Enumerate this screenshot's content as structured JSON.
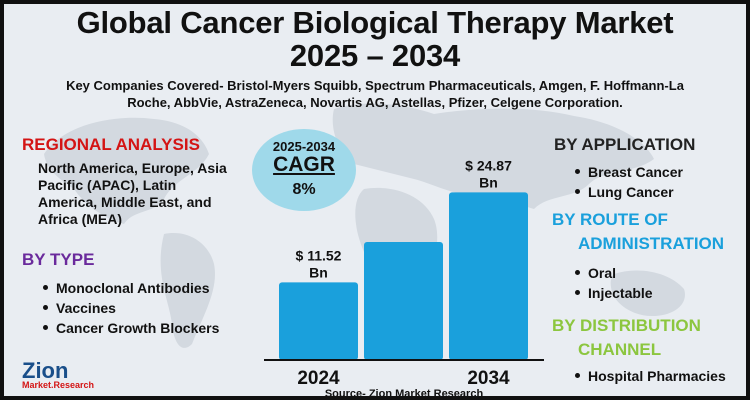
{
  "title_line1": "Global Cancer Biological Therapy Market",
  "title_line2": "2025 – 2034",
  "companies": "Key Companies Covered- Bristol-Myers Squibb, Spectrum Pharmaceuticals, Amgen, F. Hoffmann-La Roche, AbbVie, AstraZeneca, Novartis AG, Astellas, Pfizer, Celgene Corporation.",
  "regional": {
    "heading": "REGIONAL ANALYSIS",
    "text": "North America, Europe, Asia Pacific (APAC), Latin America, Middle East, and Africa (MEA)"
  },
  "by_type": {
    "heading": "BY TYPE",
    "items": [
      "Monoclonal Antibodies",
      "Vaccines",
      "Cancer Growth Blockers"
    ]
  },
  "cagr": {
    "period": "2025-2034",
    "label": "CAGR",
    "value": "8%"
  },
  "by_application": {
    "heading": "BY APPLICATION",
    "items": [
      "Breast Cancer",
      "Lung Cancer"
    ]
  },
  "by_route": {
    "heading_line1": "BY ROUTE OF",
    "heading_line2": "ADMINISTRATION",
    "items": [
      "Oral",
      "Injectable"
    ]
  },
  "by_distribution": {
    "heading_line1": "BY DISTRIBUTION",
    "heading_line2": "CHANNEL",
    "items": [
      "Hospital Pharmacies"
    ]
  },
  "source": "Source- Zion Market Research",
  "logo": {
    "word": "Zion",
    "sub": "Market.Research"
  },
  "colors": {
    "bar": "#1aa0dc",
    "cagr_circle": "#9fd9ea",
    "red_heading": "#d41414",
    "purple_heading": "#6a2a9c",
    "blue_heading": "#1aa0dc",
    "green_heading": "#8cc63f"
  },
  "chart_data": {
    "type": "bar",
    "categories": [
      "2024",
      "",
      "2034"
    ],
    "values": [
      11.52,
      17.5,
      24.87
    ],
    "data_labels": [
      "$ 11.52 Bn",
      "",
      "$ 24.87 Bn"
    ],
    "unit": "Bn",
    "ylim": [
      0,
      27
    ],
    "grid": false
  }
}
